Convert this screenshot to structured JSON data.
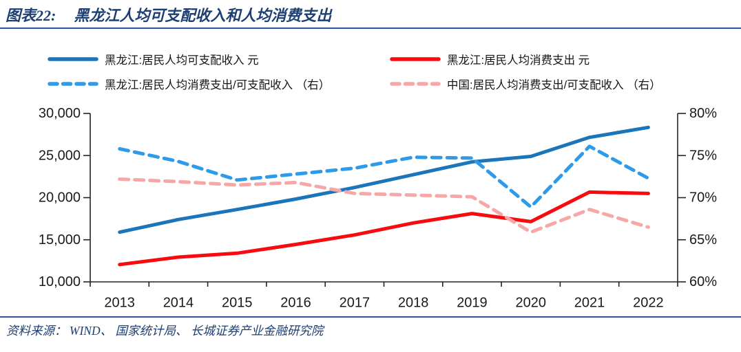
{
  "header": {
    "figure_label": "图表22:",
    "title": "黑龙江人均可支配收入和人均消费支出"
  },
  "source": {
    "text": "资料来源： WIND、 国家统计局、 长城证券产业金融研究院"
  },
  "colors": {
    "accent_navy": "#1d3f72",
    "rule_blue": "#2b5797",
    "axis_black": "#222222",
    "solid_blue": "#1B75BB",
    "solid_red": "#F80B0E",
    "dashed_blue": "#2E9BEA",
    "dashed_pink": "#F6A8A9"
  },
  "chart_data": {
    "type": "line",
    "title": "黑龙江人均可支配收入和人均消费支出",
    "categories": [
      "2013",
      "2014",
      "2015",
      "2016",
      "2017",
      "2018",
      "2019",
      "2020",
      "2021",
      "2022"
    ],
    "series": [
      {
        "name": "黑龙江:居民人均可支配收入 元",
        "axis": "left",
        "style": "solid",
        "color": "#1B75BB",
        "values": [
          15903,
          17404,
          18593,
          19838,
          21206,
          22726,
          24254,
          24902,
          27159,
          28346
        ]
      },
      {
        "name": "黑龙江:居民人均消费支出 元",
        "axis": "left",
        "style": "solid",
        "color": "#F80B0E",
        "values": [
          12056,
          12939,
          13403,
          14447,
          15578,
          16995,
          18112,
          17150,
          20662,
          20498
        ]
      },
      {
        "name": "黑龙江:居民人均消费支出/可支配收入 （右）",
        "axis": "right",
        "style": "dashed",
        "color": "#2E9BEA",
        "values": [
          75.8,
          74.3,
          72.1,
          72.8,
          73.5,
          74.8,
          74.7,
          68.9,
          76.1,
          72.3
        ]
      },
      {
        "name": "中国:居民人均消费支出/可支配收入 （右）",
        "axis": "right",
        "style": "dashed",
        "color": "#F6A8A9",
        "values": [
          72.2,
          71.9,
          71.5,
          71.8,
          70.5,
          70.3,
          70.1,
          65.9,
          68.6,
          66.5
        ]
      }
    ],
    "left_axis": {
      "min": 10000,
      "max": 30000,
      "step": 5000,
      "tick_labels": [
        "30,000",
        "25,000",
        "20,000",
        "15,000",
        "10,000"
      ]
    },
    "right_axis": {
      "min": 60,
      "max": 80,
      "step": 5,
      "tick_labels": [
        "80%",
        "75%",
        "70%",
        "65%",
        "60%"
      ]
    },
    "xlabel": "",
    "ylabel": "",
    "grid": false,
    "legend_position": "top"
  }
}
